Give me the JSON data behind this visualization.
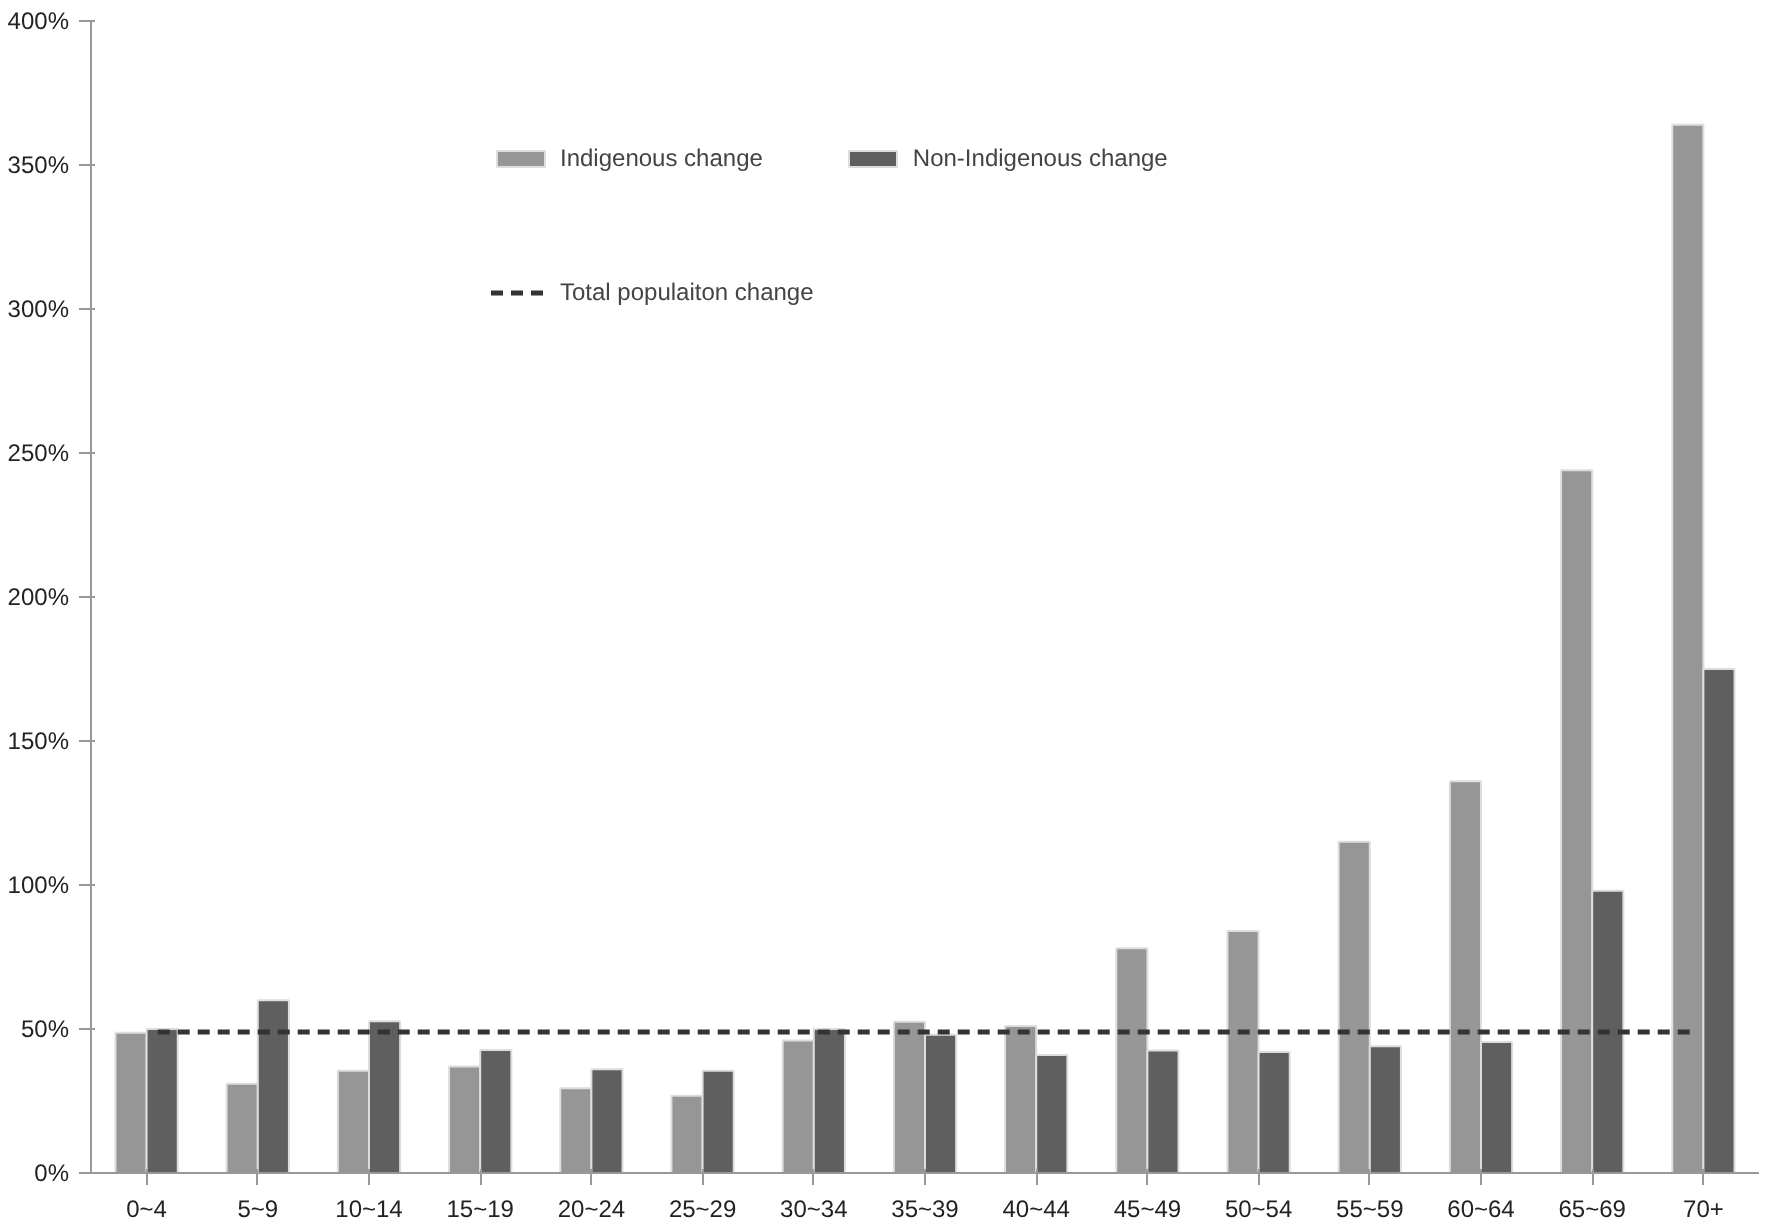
{
  "chart_data": {
    "type": "bar",
    "categories": [
      "0~4",
      "5~9",
      "10~14",
      "15~19",
      "20~24",
      "25~29",
      "30~34",
      "35~39",
      "40~44",
      "45~49",
      "50~54",
      "55~59",
      "60~64",
      "65~69",
      "70+"
    ],
    "series": [
      {
        "name": "Indigenous change",
        "color": "#969696",
        "values": [
          48.7,
          31,
          35.5,
          37,
          29.4,
          26.8,
          46,
          52.5,
          51,
          78,
          84,
          115,
          136,
          244,
          364
        ]
      },
      {
        "name": "Non-Indigenous change",
        "color": "#5f5f5f",
        "values": [
          50,
          60,
          52.7,
          42.7,
          36,
          35.5,
          50,
          48,
          41,
          42.5,
          42,
          44,
          45.5,
          98,
          175
        ]
      }
    ],
    "ylim": [
      0,
      400
    ],
    "yticks": [
      {
        "value": 0,
        "label": "0%"
      },
      {
        "value": 50,
        "label": "50%"
      },
      {
        "value": 100,
        "label": "100%"
      },
      {
        "value": 150,
        "label": "150%"
      },
      {
        "value": 200,
        "label": "200%"
      },
      {
        "value": 250,
        "label": "250%"
      },
      {
        "value": 300,
        "label": "300%"
      },
      {
        "value": 350,
        "label": "350%"
      },
      {
        "value": 400,
        "label": "400%"
      }
    ],
    "ref_lines": [
      {
        "axis": "y",
        "value": 49,
        "label": "Total populaiton change",
        "color": "#333333",
        "line_style": "dashed"
      }
    ],
    "grid": false,
    "legend": "top"
  }
}
